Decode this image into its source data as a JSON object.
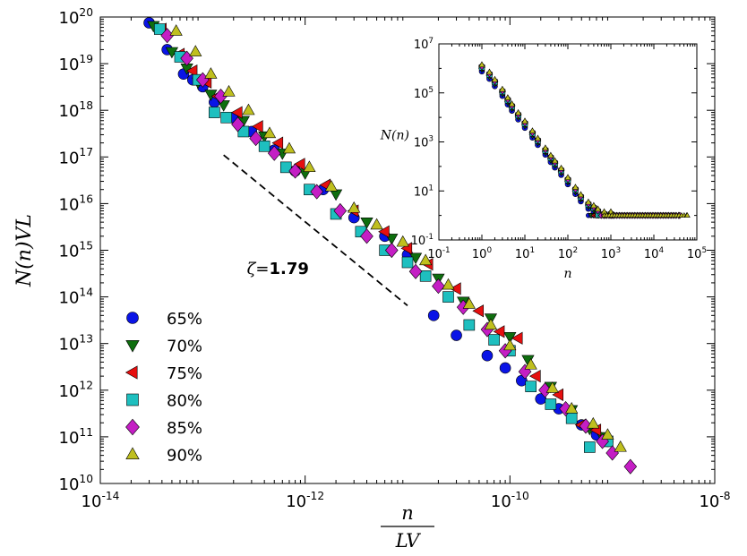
{
  "chart_data": [
    {
      "type": "scatter",
      "scale": "log-log",
      "title": "",
      "xlabel_num": "n",
      "xlabel_den": "LV",
      "ylabel": "N(n)VL",
      "xlim": [
        1e-14,
        1e-08
      ],
      "ylim": [
        10000000000.0,
        1e+20
      ],
      "xtick_exponents": [
        "-14",
        "-12",
        "-10",
        "-8"
      ],
      "xtick_values": [
        1e-14,
        1e-12,
        1e-10,
        1e-08
      ],
      "ytick_exponents": [
        "10",
        "11",
        "12",
        "13",
        "14",
        "15",
        "16",
        "17",
        "18",
        "19",
        "20"
      ],
      "ytick_values": [
        10000000000.0,
        100000000000.0,
        1000000000000.0,
        10000000000000.0,
        100000000000000.0,
        1000000000000000.0,
        1e+16,
        1e+17,
        1e+18,
        1e+19,
        1e+20
      ],
      "tick_base": "10",
      "legend_position": "lower-left",
      "annotation": {
        "symbol": "ζ",
        "eq": "=",
        "value": "1.79",
        "line_from": [
          1.6e-13,
          1.1e+17
        ],
        "line_to": [
          1e-11,
          65000000000000.0
        ]
      },
      "series": [
        {
          "name": "65%",
          "marker": "circle",
          "color": "#0a14e6",
          "x": [
            3e-14,
            4.5e-14,
            6.5e-14,
            8e-14,
            1e-13,
            1.3e-13,
            2e-13,
            3e-13,
            5e-13,
            8e-13,
            1.5e-12,
            3e-12,
            6e-12,
            1e-11,
            1.8e-11,
            3e-11,
            6e-11,
            9e-11,
            1.3e-10,
            2e-10,
            3e-10,
            5e-10,
            7e-10,
            9e-10
          ],
          "y": [
            7.5e+19,
            2e+19,
            6e+18,
            4.5e+18,
            3.2e+18,
            1.5e+18,
            7e+17,
            3.5e+17,
            1.4e+17,
            5e+16,
            2e+16,
            5000000000000000.0,
            2000000000000000.0,
            800000000000000.0,
            40000000000000.0,
            15000000000000.0,
            5500000000000.0,
            3000000000000.0,
            1600000000000.0,
            650000000000.0,
            400000000000.0,
            180000000000.0,
            110000000000.0,
            80000000000.0
          ]
        },
        {
          "name": "70%",
          "marker": "triangle-down",
          "color": "#0e6e0e",
          "x": [
            3.3e-14,
            5e-14,
            7e-14,
            9e-14,
            1.2e-13,
            1.6e-13,
            2.5e-13,
            4e-13,
            6e-13,
            1e-12,
            2e-12,
            4e-12,
            7e-12,
            1.2e-11,
            2e-11,
            3.5e-11,
            6.5e-11,
            1e-10,
            1.5e-10,
            2.5e-10,
            4e-10,
            6e-10,
            8e-10
          ],
          "y": [
            6.5e+19,
            1.8e+19,
            8e+18,
            4e+18,
            2.2e+18,
            1.3e+18,
            6e+17,
            2.8e+17,
            1.2e+17,
            4.5e+16,
            1.6e+16,
            4000000000000000.0,
            1800000000000000.0,
            700000000000000.0,
            250000000000000.0,
            80000000000000.0,
            35000000000000.0,
            14000000000000.0,
            4500000000000.0,
            1200000000000.0,
            380000000000.0,
            150000000000.0,
            100000000000.0
          ]
        },
        {
          "name": "75%",
          "marker": "triangle-left",
          "color": "#e60f0f",
          "x": [
            4e-14,
            6e-14,
            8e-14,
            1.1e-13,
            1.4e-13,
            2.2e-13,
            3.5e-13,
            5.5e-13,
            9e-13,
            1.6e-12,
            3e-12,
            6e-12,
            1e-11,
            1.6e-11,
            3e-11,
            5e-11,
            8e-11,
            1.2e-10,
            1.8e-10,
            3e-10,
            5e-10,
            7e-10
          ],
          "y": [
            5.5e+19,
            1.6e+19,
            7e+18,
            4e+18,
            2e+18,
            9e+17,
            4.5e+17,
            2e+17,
            7e+16,
            2.5e+16,
            7000000000000000.0,
            2500000000000000.0,
            1100000000000000.0,
            500000000000000.0,
            150000000000000.0,
            50000000000000.0,
            18000000000000.0,
            13000000000000.0,
            2000000000000.0,
            800000000000.0,
            180000000000.0,
            140000000000.0
          ]
        },
        {
          "name": "80%",
          "marker": "square",
          "color": "#1ebfbf",
          "x": [
            3.8e-14,
            6e-14,
            9e-14,
            1.3e-13,
            1.7e-13,
            2.5e-13,
            4e-13,
            6.5e-13,
            1.1e-12,
            2e-12,
            3.5e-12,
            6e-12,
            1e-11,
            1.5e-11,
            2.5e-11,
            4e-11,
            7e-11,
            1e-10,
            1.6e-10,
            2.5e-10,
            4e-10,
            6e-10,
            9e-10
          ],
          "y": [
            5.5e+19,
            1.4e+19,
            4.5e+18,
            9e+17,
            7e+17,
            3.5e+17,
            1.7e+17,
            6e+16,
            2e+16,
            6000000000000000.0,
            2500000000000000.0,
            1000000000000000.0,
            550000000000000.0,
            280000000000000.0,
            100000000000000.0,
            25000000000000.0,
            12000000000000.0,
            7000000000000.0,
            1200000000000.0,
            500000000000.0,
            250000000000.0,
            60000000000.0,
            80000000000.0
          ]
        },
        {
          "name": "85%",
          "marker": "diamond",
          "color": "#c41ec4",
          "x": [
            4.5e-14,
            7e-14,
            1e-13,
            1.5e-13,
            2.2e-13,
            3.3e-13,
            5e-13,
            8e-13,
            1.3e-12,
            2.2e-12,
            4e-12,
            7e-12,
            1.2e-11,
            2e-11,
            3.5e-11,
            6e-11,
            9e-11,
            1.4e-10,
            2.2e-10,
            3.5e-10,
            5.5e-10,
            8e-10,
            1e-09,
            1.5e-09
          ],
          "y": [
            4e+19,
            1.3e+19,
            4.5e+18,
            2e+18,
            5e+17,
            2.5e+17,
            1.2e+17,
            5e+16,
            1.8e+16,
            7000000000000000.0,
            2000000000000000.0,
            1000000000000000.0,
            350000000000000.0,
            170000000000000.0,
            60000000000000.0,
            20000000000000.0,
            7000000000000.0,
            2500000000000.0,
            1000000000000.0,
            400000000000.0,
            170000000000.0,
            80000000000.0,
            45000000000.0,
            23000000000.0
          ]
        },
        {
          "name": "90%",
          "marker": "triangle-up",
          "color": "#bfbf1e",
          "x": [
            5.5e-14,
            8.5e-14,
            1.2e-13,
            1.8e-13,
            2.8e-13,
            4.5e-13,
            7e-13,
            1.1e-12,
            1.8e-12,
            3e-12,
            5e-12,
            9e-12,
            1.5e-11,
            2.5e-11,
            4e-11,
            6.5e-11,
            1e-10,
            1.6e-10,
            2.6e-10,
            4e-10,
            6.5e-10,
            9e-10,
            1.2e-09
          ],
          "y": [
            5e+19,
            1.8e+19,
            6e+18,
            2.5e+18,
            1e+18,
            3.2e+17,
            1.5e+17,
            6e+16,
            2.3e+16,
            8000000000000000.0,
            3500000000000000.0,
            1500000000000000.0,
            600000000000000.0,
            180000000000000.0,
            70000000000000.0,
            25000000000000.0,
            9000000000000.0,
            3500000000000.0,
            1100000000000.0,
            400000000000.0,
            190000000000.0,
            110000000000.0,
            60000000000.0
          ]
        }
      ]
    },
    {
      "type": "scatter",
      "scale": "log-log",
      "title": "",
      "xlabel": "n",
      "ylabel": "N(n)",
      "xlim": [
        0.1,
        100000.0
      ],
      "ylim": [
        0.1,
        10000000.0
      ],
      "xtick_exponents": [
        "-1",
        "0",
        "1",
        "2",
        "3",
        "4",
        "5"
      ],
      "xtick_values": [
        0.1,
        1,
        10,
        100,
        1000,
        10000,
        100000
      ],
      "ytick_exponents": [
        "-1",
        "1",
        "3",
        "5",
        "7"
      ],
      "ytick_values": [
        0.1,
        10,
        1000,
        100000,
        10000000
      ],
      "tick_base": "10",
      "note": "Inset: same six series, raw counts N(n) vs n; decays from ~1e6 at n=1 to a floor of 1 near n~300-50000",
      "series_names": [
        "65%",
        "70%",
        "75%",
        "80%",
        "85%",
        "90%"
      ],
      "series_colors": [
        "#0a14e6",
        "#0e6e0e",
        "#e60f0f",
        "#1ebfbf",
        "#c41ec4",
        "#bfbf1e"
      ],
      "series_markers": [
        "circle",
        "triangle-down",
        "triangle-left",
        "square",
        "diamond",
        "triangle-up"
      ],
      "shared_curve": {
        "x": [
          1,
          1.5,
          2,
          3,
          4,
          5,
          7,
          10,
          15,
          20,
          30,
          40,
          50,
          70,
          100,
          150,
          200,
          300,
          400,
          500,
          700,
          1000
        ],
        "y": [
          1000000,
          500000,
          250000,
          100000,
          45000,
          25000,
          11000,
          5000,
          2000,
          1000,
          400,
          200,
          120,
          60,
          25,
          10,
          5,
          2.5,
          1.8,
          1.3,
          1,
          1
        ]
      },
      "floor_ranges": {
        "x_start": [
          300,
          350,
          400,
          500,
          600,
          700
        ],
        "x_end": [
          5000,
          12000,
          20000,
          30000,
          40000,
          60000
        ],
        "value": 1
      }
    }
  ]
}
